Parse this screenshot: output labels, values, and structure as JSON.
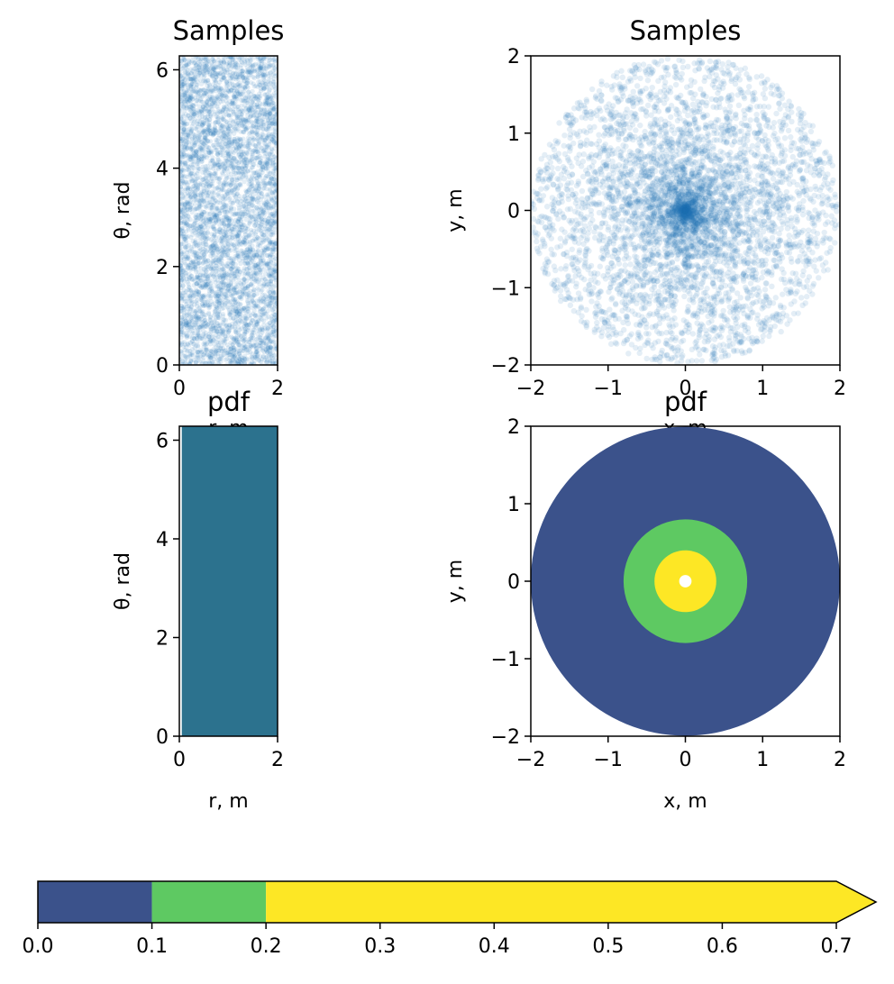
{
  "chart_data": [
    {
      "type": "scatter",
      "panel": "polar-samples",
      "title": "Samples",
      "xlabel": "r, m",
      "ylabel": "θ, rad",
      "xlim": [
        0,
        2
      ],
      "ylim": [
        0,
        6.283
      ],
      "xticks": [
        "0",
        "2"
      ],
      "yticks": [
        "0",
        "2",
        "4",
        "6"
      ],
      "distribution": "uniform in r and θ",
      "n_points": 5000,
      "marker_color": "#1f77b4",
      "alpha": 0.12
    },
    {
      "type": "scatter",
      "panel": "cartesian-samples",
      "title": "Samples",
      "xlabel": "x, m",
      "ylabel": "y, m",
      "xlim": [
        -2,
        2
      ],
      "ylim": [
        -2,
        2
      ],
      "xticks": [
        "−2",
        "−1",
        "0",
        "1",
        "2"
      ],
      "yticks": [
        "−2",
        "−1",
        "0",
        "1",
        "2"
      ],
      "distribution": "disc of radius 2, density ∝ 1/r",
      "n_points": 5000,
      "marker_color": "#1f77b4",
      "alpha": 0.12
    },
    {
      "type": "heatmap",
      "panel": "polar-pdf",
      "title": "pdf",
      "xlabel": "r, m",
      "ylabel": "θ, rad",
      "xlim": [
        0,
        2
      ],
      "ylim": [
        0,
        6.283
      ],
      "xticks": [
        "0",
        "2"
      ],
      "yticks": [
        "0",
        "2",
        "4",
        "6"
      ],
      "filled_region": {
        "r_min": 0.05,
        "r_max": 2,
        "theta_min": 0,
        "theta_max": 6.283
      },
      "value": 0.0796,
      "fill_color": "#2c728e"
    },
    {
      "type": "heatmap",
      "panel": "cartesian-pdf",
      "title": "pdf",
      "xlabel": "x, m",
      "ylabel": "y, m",
      "xlim": [
        -2,
        2
      ],
      "ylim": [
        -2,
        2
      ],
      "xticks": [
        "−2",
        "−1",
        "0",
        "1",
        "2"
      ],
      "yticks": [
        "−2",
        "−1",
        "0",
        "1",
        "2"
      ],
      "rings": [
        {
          "r_min": 0.8,
          "r_max": 2.0,
          "level": "0.0–0.1",
          "color": "#3b528b"
        },
        {
          "r_min": 0.4,
          "r_max": 0.8,
          "level": "0.1–0.2",
          "color": "#5ec962"
        },
        {
          "r_min": 0.08,
          "r_max": 0.4,
          "level": "0.2–0.7+",
          "color": "#fde725"
        }
      ],
      "hole_radius": 0.08
    },
    {
      "type": "colorbar",
      "panel": "colorbar",
      "orientation": "horizontal",
      "extend": "max",
      "range": [
        0,
        0.7
      ],
      "boundaries": [
        0,
        0.1,
        0.2,
        0.7
      ],
      "colors": [
        "#3b528b",
        "#5ec962",
        "#fde725"
      ],
      "extension_color": "#fde725",
      "ticks": [
        "0.0",
        "0.1",
        "0.2",
        "0.3",
        "0.4",
        "0.5",
        "0.6",
        "0.7"
      ]
    }
  ]
}
